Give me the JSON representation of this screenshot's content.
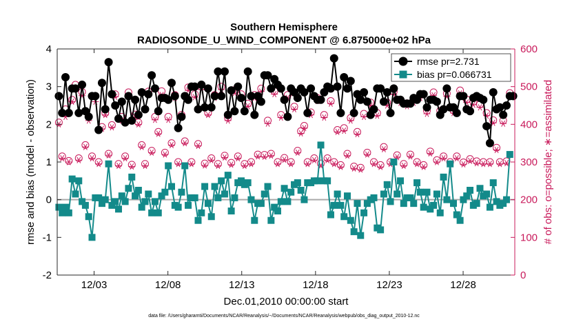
{
  "chart_data": {
    "type": "line",
    "title": "Southern Hemisphere",
    "subtitle": "RADIOSONDE_U_WIND_COMPONENT @ 6.875000e+02 hPa",
    "xlabel": "Dec.01,2010 00:00:00 start",
    "ylabel": "rmse and bias (model - observation)",
    "y2label": "# of obs: o=possible; ∗=assimilated",
    "footer": "data file: /Users/gharamti/Documents/NCAR/Reanalysis/~/Documents/NCAR/Reanalysis/webpub/obs_diag_output_2010-12.nc",
    "xlim": [
      0,
      31
    ],
    "xticks": [
      2.5,
      7.5,
      12.5,
      17.5,
      22.5,
      27.5
    ],
    "xtick_labels": [
      "12/03",
      "12/08",
      "12/13",
      "12/18",
      "12/23",
      "12/28"
    ],
    "ylim": [
      -2,
      4
    ],
    "yticks": [
      -2,
      -1,
      0,
      1,
      2,
      3,
      4
    ],
    "ytick_labels": [
      "-2",
      "-1",
      "0",
      "1",
      "2",
      "3",
      "4"
    ],
    "y2lim": [
      0,
      600
    ],
    "y2ticks": [
      0,
      100,
      200,
      300,
      400,
      500,
      600
    ],
    "y2tick_labels": [
      "0",
      "100",
      "200",
      "300",
      "400",
      "500",
      "600"
    ],
    "zero_line": 0,
    "legend": {
      "position": "top-right",
      "entries": [
        "rmse pr=2.731",
        "bias pr=0.066731"
      ]
    },
    "colors": {
      "rmse": "#000000",
      "bias": "#138a8a",
      "obs": "#c8195a",
      "zero_line": "#a9a9a9"
    },
    "series": [
      {
        "name": "rmse pr=2.731",
        "axis": "left",
        "marker": "filled-circle",
        "values": [
          2.75,
          2.3,
          3.25,
          2.3,
          2.95,
          2.95,
          2.3,
          3.05,
          2.35,
          2.2,
          2.75,
          2.75,
          1.85,
          3.1,
          2.4,
          3.65,
          2.8,
          2.5,
          2.15,
          2.6,
          2.05,
          2.75,
          2.1,
          2.65,
          2.25,
          2.85,
          2.4,
          2.8,
          3.3,
          2.95,
          2.35,
          2.7,
          2.7,
          2.65,
          3.1,
          2.75,
          1.9,
          2.2,
          2.75,
          2.65,
          3.0,
          3.0,
          2.4,
          3.05,
          2.45,
          2.95,
          2.45,
          2.75,
          3.4,
          2.75,
          3.4,
          2.25,
          2.9,
          2.35,
          3.0,
          2.7,
          2.35,
          3.4,
          2.75,
          2.25,
          2.75,
          2.6,
          3.3,
          3.3,
          2.95,
          3.2,
          3.05,
          2.95,
          2.65,
          2.2,
          2.95,
          2.85,
          2.7,
          2.95,
          2.85,
          2.3,
          2.95,
          2.75,
          2.65,
          2.65,
          2.85,
          3.0,
          2.95,
          3.75,
          3.0,
          2.3,
          3.25,
          2.95,
          3.15,
          2.3,
          2.8,
          2.65,
          2.85,
          2.6,
          2.25,
          2.4,
          2.95,
          2.95,
          2.6,
          2.85,
          2.3,
          2.95,
          2.65,
          2.65,
          2.55,
          2.55,
          2.55,
          2.7,
          2.65,
          2.8,
          2.8,
          2.45,
          2.65,
          2.65,
          2.6,
          2.25,
          2.4,
          2.95,
          2.45,
          2.45,
          2.3,
          2.75,
          2.75,
          2.4,
          2.35,
          2.7,
          2.75,
          2.7,
          2.65,
          1.95,
          1.5,
          2.85,
          2.4,
          2.45,
          2.25,
          2.5,
          2.75,
          2.75
        ]
      },
      {
        "name": "bias pr=0.066731",
        "axis": "left",
        "marker": "filled-square",
        "values": [
          -0.2,
          -0.35,
          -0.2,
          -0.35,
          0.55,
          0.15,
          0.5,
          -0.05,
          -0.15,
          -0.45,
          -1.0,
          0.05,
          0.05,
          -0.1,
          0.0,
          0.95,
          -0.15,
          -0.05,
          -0.25,
          0.1,
          -0.05,
          0.3,
          0.6,
          0.1,
          0.25,
          -0.2,
          -0.05,
          0.15,
          -0.35,
          -0.05,
          -0.35,
          0.1,
          0.2,
          0.9,
          0.35,
          -0.15,
          -0.2,
          0.2,
          0.9,
          -0.15,
          0.05,
          0.05,
          -0.55,
          -0.35,
          0.35,
          -0.1,
          -0.45,
          0.35,
          0.05,
          0.5,
          0.15,
          0.65,
          -0.3,
          0.05,
          0.45,
          0.5,
          0.4,
          0.45,
          0.0,
          -0.55,
          -0.1,
          -0.1,
          0.15,
          0.35,
          -0.55,
          -0.2,
          -0.3,
          -0.05,
          0.3,
          -0.05,
          0.2,
          0.4,
          0.45,
          0.25,
          0.0,
          0.45,
          0.45,
          0.5,
          0.5,
          1.45,
          0.5,
          0.5,
          -0.4,
          -0.15,
          0.15,
          -0.15,
          -0.45,
          0.1,
          -0.55,
          -0.85,
          -0.1,
          -0.95,
          -0.35,
          -0.1,
          0.0,
          0.05,
          -0.75,
          -0.8,
          0.15,
          0.4,
          -0.05,
          1.0,
          0.15,
          0.5,
          -0.1,
          0.05,
          0.05,
          -0.1,
          0.45,
          0.2,
          -0.2,
          0.2,
          -0.25,
          -0.15,
          0.15,
          -0.35,
          0.6,
          0.0,
          0.95,
          -0.1,
          -0.4,
          -0.55,
          0.0,
          0.1,
          0.25,
          -0.15,
          -0.1,
          0.3,
          0.1,
          0.15,
          -0.2,
          0.45,
          -0.05,
          -0.15,
          -0.1,
          0.0,
          1.2
        ]
      },
      {
        "name": "# of obs possible",
        "axis": "right",
        "marker": "open-circle",
        "values": [
          405,
          315,
          440,
          303,
          465,
          505,
          310,
          486,
          345,
          420,
          315,
          475,
          300,
          393,
          430,
          322,
          398,
          480,
          295,
          420,
          315,
          485,
          293,
          426,
          405,
          345,
          295,
          487,
          330,
          420,
          380,
          488,
          325,
          420,
          350,
          478,
          300,
          425,
          355,
          498,
          300,
          480,
          348,
          500,
          296,
          430,
          310,
          478,
          295,
          500,
          317,
          417,
          298,
          491,
          315,
          480,
          295,
          455,
          300,
          478,
          320,
          495,
          319,
          410,
          322,
          488,
          300,
          425,
          311,
          478,
          300,
          447,
          330,
          382,
          396,
          300,
          432,
          310,
          470,
          296,
          425,
          310,
          462,
          300,
          385,
          292,
          390,
          322,
          417,
          288,
          380,
          285,
          428,
          325,
          458,
          300,
          430,
          292,
          340,
          458,
          300,
          487,
          318,
          465,
          295,
          456,
          320,
          465,
          300,
          478,
          292,
          436,
          328,
          485,
          305,
          436,
          315,
          482,
          300,
          437,
          315,
          490,
          299,
          466,
          308,
          460,
          302,
          453,
          300,
          430,
          300,
          411,
          338,
          300,
          410,
          302,
          483
        ]
      },
      {
        "name": "# of obs assimilated",
        "axis": "right",
        "marker": "asterisk",
        "values": [
          400,
          310,
          420,
          300,
          460,
          493,
          305,
          476,
          340,
          410,
          310,
          460,
          295,
          388,
          425,
          318,
          392,
          473,
          290,
          410,
          310,
          475,
          288,
          420,
          400,
          340,
          290,
          480,
          325,
          412,
          375,
          478,
          320,
          412,
          345,
          470,
          295,
          418,
          350,
          490,
          295,
          472,
          343,
          492,
          291,
          425,
          305,
          470,
          290,
          492,
          312,
          410,
          293,
          483,
          310,
          472,
          290,
          448,
          295,
          470,
          315,
          487,
          314,
          402,
          317,
          480,
          295,
          418,
          306,
          470,
          295,
          440,
          325,
          376,
          390,
          295,
          425,
          305,
          462,
          291,
          418,
          305,
          455,
          295,
          380,
          287,
          383,
          317,
          410,
          283,
          374,
          280,
          420,
          320,
          450,
          295,
          423,
          287,
          334,
          450,
          295,
          479,
          313,
          457,
          290,
          448,
          315,
          457,
          295,
          470,
          287,
          428,
          323,
          477,
          300,
          428,
          310,
          474,
          295,
          430,
          310,
          482,
          294,
          458,
          303,
          452,
          297,
          445,
          295,
          423,
          295,
          404,
          332,
          295,
          402,
          297,
          475
        ]
      }
    ]
  }
}
